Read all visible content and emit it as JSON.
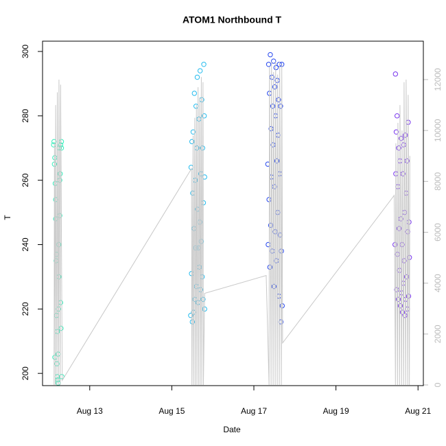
{
  "chart_data": {
    "type": "scatter",
    "title": "ATOM1 Northbound T",
    "x_label": "Date",
    "y_label": "T",
    "xlim": [
      11.85,
      21.13
    ],
    "xticks": [
      {
        "value": 13,
        "label": "Aug 13"
      },
      {
        "value": 15,
        "label": "Aug 15"
      },
      {
        "value": 17,
        "label": "Aug 17"
      },
      {
        "value": 19,
        "label": "Aug 19"
      },
      {
        "value": 21,
        "label": "Aug 21"
      }
    ],
    "ylim": [
      196.2,
      303.2
    ],
    "yticks": [
      200,
      220,
      240,
      260,
      280,
      300
    ],
    "y2lim": [
      -27,
      13510
    ],
    "y2ticks": [
      0,
      2000,
      4000,
      6000,
      8000,
      10000,
      12000
    ],
    "y2_tick_color": "#bbbbbb",
    "series": [
      {
        "color": "#33eebb",
        "x": [
          12.12,
          12.13,
          12.14,
          12.15,
          12.16,
          12.17,
          12.18,
          12.19,
          12.2,
          12.21,
          12.22,
          12.23,
          12.24,
          12.25,
          12.26,
          12.27,
          12.28,
          12.29,
          12.3,
          12.31,
          12.15,
          12.17,
          12.19,
          12.21,
          12.23,
          12.25,
          12.27,
          12.29,
          12.31,
          12.32
        ],
        "values": [
          271,
          272,
          265,
          205,
          259,
          248,
          235,
          218,
          203,
          199,
          198,
          197,
          220,
          240,
          270,
          249,
          262,
          222,
          214,
          272,
          267,
          254,
          237,
          213,
          206,
          230,
          260,
          271,
          270,
          199
        ]
      },
      {
        "color": "#22bbee",
        "x": [
          15.46,
          15.47,
          15.48,
          15.49,
          15.5,
          15.51,
          15.52,
          15.53,
          15.54,
          15.55,
          15.56,
          15.57,
          15.58,
          15.59,
          15.6,
          15.61,
          15.62,
          15.63,
          15.64,
          15.65,
          15.66,
          15.67,
          15.68,
          15.69,
          15.7,
          15.71,
          15.72,
          15.73,
          15.74,
          15.75,
          15.76,
          15.77,
          15.78,
          15.79,
          15.8,
          15.8
        ],
        "values": [
          218,
          264,
          231,
          272,
          216,
          256,
          275,
          219,
          245,
          287,
          223,
          260,
          239,
          283,
          227,
          270,
          292,
          251,
          222,
          239,
          279,
          233,
          247,
          294,
          226,
          262,
          241,
          285,
          230,
          270,
          223,
          253,
          296,
          280,
          261,
          220
        ]
      },
      {
        "color": "#2244ee",
        "x": [
          17.34,
          17.35,
          17.36,
          17.37,
          17.38,
          17.39,
          17.4,
          17.41,
          17.42,
          17.43,
          17.44,
          17.45,
          17.46,
          17.47,
          17.48,
          17.49,
          17.5,
          17.51,
          17.52,
          17.53,
          17.54,
          17.55,
          17.56,
          17.57,
          17.58,
          17.59,
          17.6,
          17.61,
          17.62,
          17.63,
          17.64,
          17.65,
          17.66,
          17.67,
          17.68,
          17.69
        ],
        "values": [
          265,
          240,
          296,
          254,
          287,
          233,
          299,
          246,
          276,
          261,
          292,
          238,
          283,
          271,
          297,
          227,
          258,
          289,
          244,
          280,
          295,
          235,
          266,
          291,
          250,
          274,
          285,
          224,
          296,
          262,
          243,
          283,
          216,
          238,
          296,
          221
        ]
      },
      {
        "color": "#7733ee",
        "x": [
          20.44,
          20.45,
          20.46,
          20.47,
          20.48,
          20.49,
          20.5,
          20.51,
          20.52,
          20.53,
          20.54,
          20.55,
          20.56,
          20.57,
          20.58,
          20.59,
          20.6,
          20.61,
          20.62,
          20.63,
          20.64,
          20.65,
          20.66,
          20.67,
          20.68,
          20.69,
          20.7,
          20.71,
          20.72,
          20.73,
          20.74,
          20.75,
          20.76,
          20.77,
          20.78,
          20.79
        ],
        "values": [
          240,
          293,
          262,
          275,
          226,
          280,
          237,
          258,
          223,
          270,
          245,
          232,
          266,
          221,
          248,
          273,
          225,
          240,
          219,
          262,
          228,
          271,
          235,
          250,
          218,
          274,
          223,
          256,
          230,
          266,
          220,
          244,
          278,
          224,
          247,
          236
        ]
      },
      {
        "type": "line",
        "axis": "y2",
        "color": "#c8c8c8",
        "x": [
          12.13,
          12.14,
          12.16,
          12.17,
          12.2,
          12.21,
          12.24,
          12.25,
          12.28,
          12.29,
          12.33,
          15.48,
          15.49,
          15.52,
          15.53,
          15.56,
          15.57,
          15.6,
          15.61,
          15.64,
          15.65,
          15.68,
          15.69,
          15.72,
          15.73,
          15.76,
          15.77,
          15.8,
          17.3,
          17.37,
          17.38,
          17.42,
          17.43,
          17.47,
          17.48,
          17.52,
          17.53,
          17.57,
          17.58,
          17.62,
          17.63,
          17.67,
          17.68,
          17.7,
          20.42,
          20.45,
          20.46,
          20.5,
          20.51,
          20.55,
          20.56,
          20.6,
          20.61,
          20.65,
          20.66,
          20.7,
          20.71,
          20.75,
          20.76,
          20.79,
          20.8
        ],
        "values": [
          0,
          9500,
          0,
          11000,
          0,
          11500,
          0,
          12000,
          0,
          11800,
          180,
          8500,
          0,
          9800,
          0,
          10500,
          0,
          11000,
          0,
          11700,
          0,
          11300,
          0,
          12100,
          0,
          11900,
          0,
          3600,
          4300,
          0,
          12500,
          0,
          12700,
          0,
          12300,
          0,
          12700,
          0,
          12200,
          0,
          12700,
          0,
          12600,
          1650,
          7450,
          0,
          9500,
          0,
          10300,
          0,
          11000,
          0,
          10000,
          0,
          11900,
          0,
          12000,
          0,
          11400,
          0,
          9000
        ]
      }
    ]
  }
}
